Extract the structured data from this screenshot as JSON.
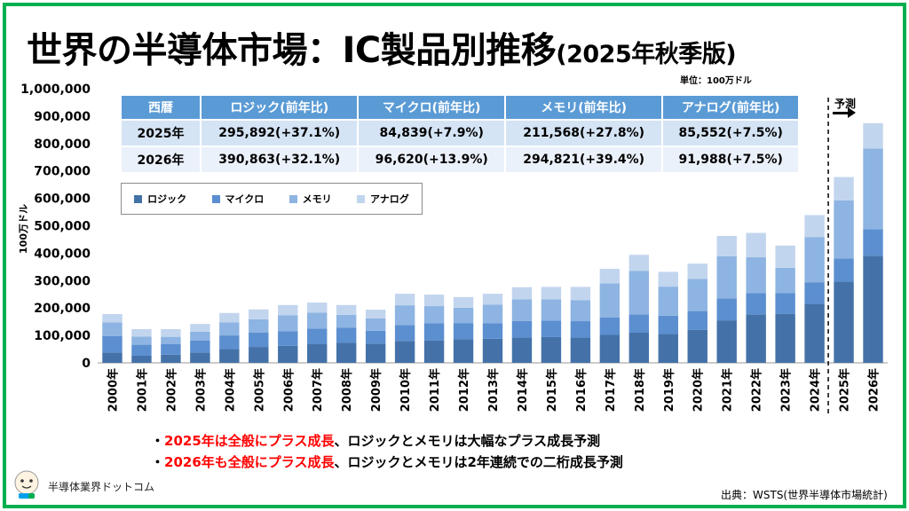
{
  "header": {
    "title": "世界の半導体市場：IC製品別推移",
    "subtitle": "(2025年秋季版)",
    "unit_label": "単位：100万ドル"
  },
  "summary_table": {
    "headers": [
      "西暦",
      "ロジック(前年比)",
      "マイクロ(前年比)",
      "メモリ(前年比)",
      "アナログ(前年比)"
    ],
    "rows": [
      [
        "2025年",
        "295,892(+37.1%)",
        "84,839(+7.9%)",
        "211,568(+27.8%)",
        "85,552(+7.5%)"
      ],
      [
        "2026年",
        "390,863(+32.1%)",
        "96,620(+13.9%)",
        "294,821(+39.4%)",
        "91,988(+7.5%)"
      ]
    ]
  },
  "legend": {
    "items": [
      {
        "label": "ロジック",
        "color": "#4472a8"
      },
      {
        "label": "マイクロ",
        "color": "#5b8fd0"
      },
      {
        "label": "メモリ",
        "color": "#8db4e2"
      },
      {
        "label": "アナログ",
        "color": "#c2d5ee"
      }
    ]
  },
  "forecast": {
    "label": "予測"
  },
  "notes": [
    {
      "highlight": "2025年は全般にプラス成長",
      "rest": "、ロジックとメモリは大幅なプラス成長予測"
    },
    {
      "highlight": "2026年も全般にプラス成長",
      "rest": "、ロジックとメモリは2年連続での二桁成長予測"
    }
  ],
  "footer": {
    "site_name": "半導体業界ドットコム",
    "source": "出典：WSTS(世界半導体市場統計)"
  },
  "colors": {
    "frame": "#00b050",
    "table_header": "#5b9bd5",
    "highlight": "#ff0000"
  },
  "chart_data": {
    "type": "bar",
    "stacked": true,
    "title": "世界の半導体市場：IC製品別推移",
    "xlabel": "",
    "ylabel": "100万ドル",
    "ylim": [
      0,
      1000000
    ],
    "yticks": [
      0,
      100000,
      200000,
      300000,
      400000,
      500000,
      600000,
      700000,
      800000,
      900000,
      1000000
    ],
    "ytick_labels": [
      "0",
      "100,000",
      "200,000",
      "300,000",
      "400,000",
      "500,000",
      "600,000",
      "700,000",
      "800,000",
      "900,000",
      "1,000,000"
    ],
    "categories": [
      "2000年",
      "2001年",
      "2002年",
      "2003年",
      "2004年",
      "2005年",
      "2006年",
      "2007年",
      "2008年",
      "2009年",
      "2010年",
      "2011年",
      "2012年",
      "2013年",
      "2014年",
      "2015年",
      "2016年",
      "2017年",
      "2018年",
      "2019年",
      "2020年",
      "2021年",
      "2022年",
      "2023年",
      "2024年",
      "2025年",
      "2026年"
    ],
    "forecast_start_index": 25,
    "series": [
      {
        "name": "ロジック",
        "values": [
          38000,
          26000,
          30000,
          38000,
          50000,
          58000,
          62000,
          68000,
          73000,
          70000,
          80000,
          82000,
          86000,
          88000,
          92000,
          94000,
          92000,
          102000,
          110000,
          105000,
          120000,
          155000,
          176000,
          179000,
          215000,
          295892,
          390863
        ]
      },
      {
        "name": "マイクロ",
        "values": [
          60000,
          40000,
          38000,
          43000,
          50000,
          53000,
          53000,
          57000,
          55000,
          47000,
          58000,
          63000,
          58000,
          57000,
          61000,
          60000,
          60000,
          64000,
          67000,
          67000,
          69000,
          80000,
          79000,
          76000,
          79000,
          84839,
          96620
        ]
      },
      {
        "name": "メモリ",
        "values": [
          50000,
          30000,
          27000,
          33000,
          48000,
          48000,
          59000,
          58000,
          47000,
          45000,
          72000,
          62000,
          57000,
          67000,
          79000,
          78000,
          77000,
          124000,
          158000,
          106000,
          117000,
          154000,
          130000,
          92000,
          165000,
          211568,
          294821
        ]
      },
      {
        "name": "アナログ",
        "values": [
          30000,
          27000,
          28000,
          28000,
          34000,
          36000,
          37000,
          37000,
          36000,
          32000,
          42000,
          42000,
          39000,
          40000,
          44000,
          45000,
          48000,
          53000,
          59000,
          54000,
          56000,
          74000,
          89000,
          81000,
          80000,
          85552,
          91988
        ]
      }
    ]
  }
}
